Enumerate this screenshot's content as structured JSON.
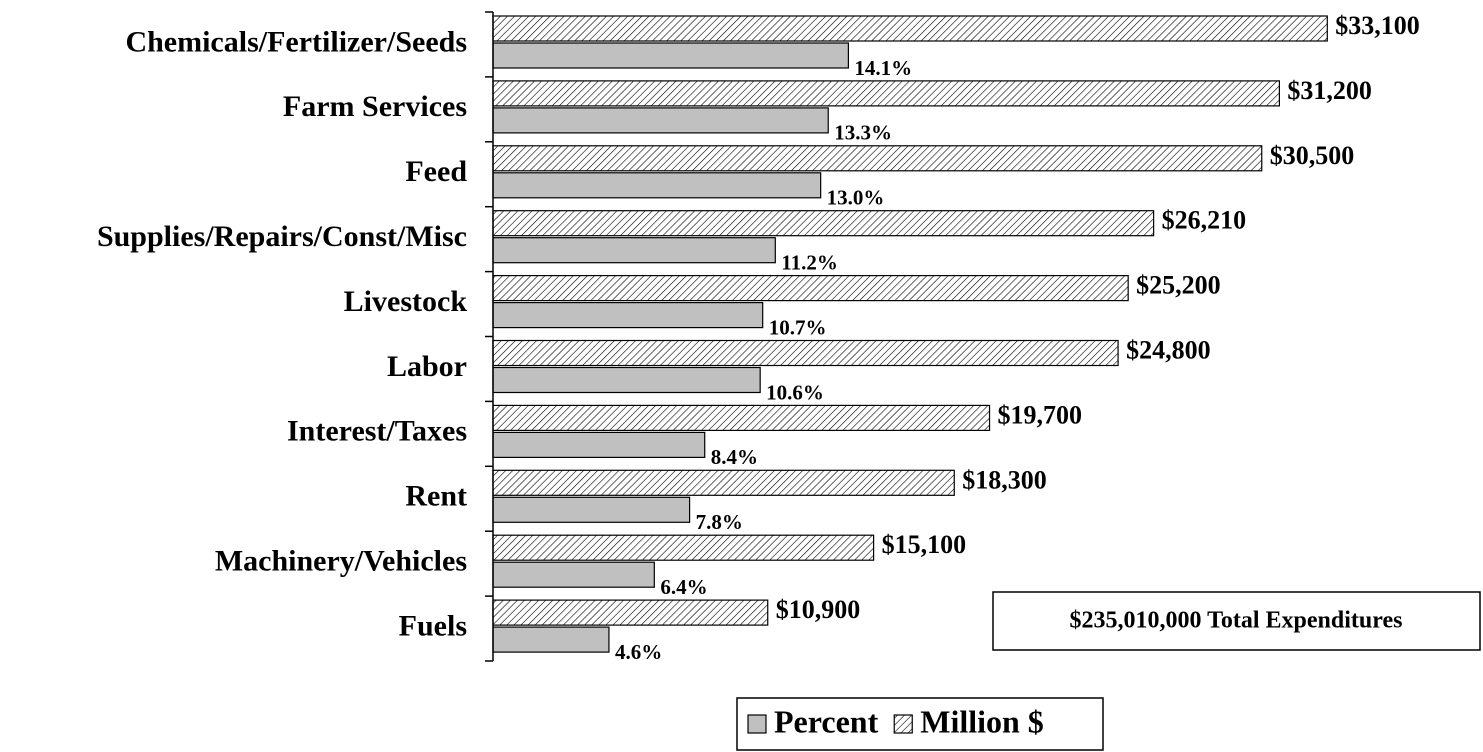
{
  "chart_data": {
    "type": "bar",
    "orientation": "horizontal",
    "categories": [
      "Chemicals/Fertilizer/Seeds",
      "Farm Services",
      "Feed",
      "Supplies/Repairs/Const/Misc",
      "Livestock",
      "Labor",
      "Interest/Taxes",
      "Rent",
      "Machinery/Vehicles",
      "Fuels"
    ],
    "series": [
      {
        "name": "Million $",
        "color": "#000000",
        "hatch": true,
        "values": [
          33100,
          31200,
          30500,
          26210,
          25200,
          24800,
          19700,
          18300,
          15100,
          10900
        ],
        "value_labels": [
          "$33,100",
          "$31,200",
          "$30,500",
          "$26,210",
          "$25,200",
          "$24,800",
          "$19,700",
          "$18,300",
          "$15,100",
          "$10,900"
        ]
      },
      {
        "name": "Percent",
        "color": "#c0c0c0",
        "axis": "x2",
        "values": [
          14.1,
          13.3,
          13.0,
          11.2,
          10.7,
          10.6,
          8.4,
          7.8,
          6.4,
          4.6
        ],
        "value_labels": [
          "14.1%",
          "13.3%",
          "13.0%",
          "11.2%",
          "10.7%",
          "10.6%",
          "8.4%",
          "7.8%",
          "6.4%",
          "4.6%"
        ]
      }
    ],
    "xlim": [
      0,
      39000
    ],
    "x2lim": [
      0,
      39
    ],
    "annotation": "$235,010,000 Total Expenditures",
    "legend": "bottom"
  }
}
